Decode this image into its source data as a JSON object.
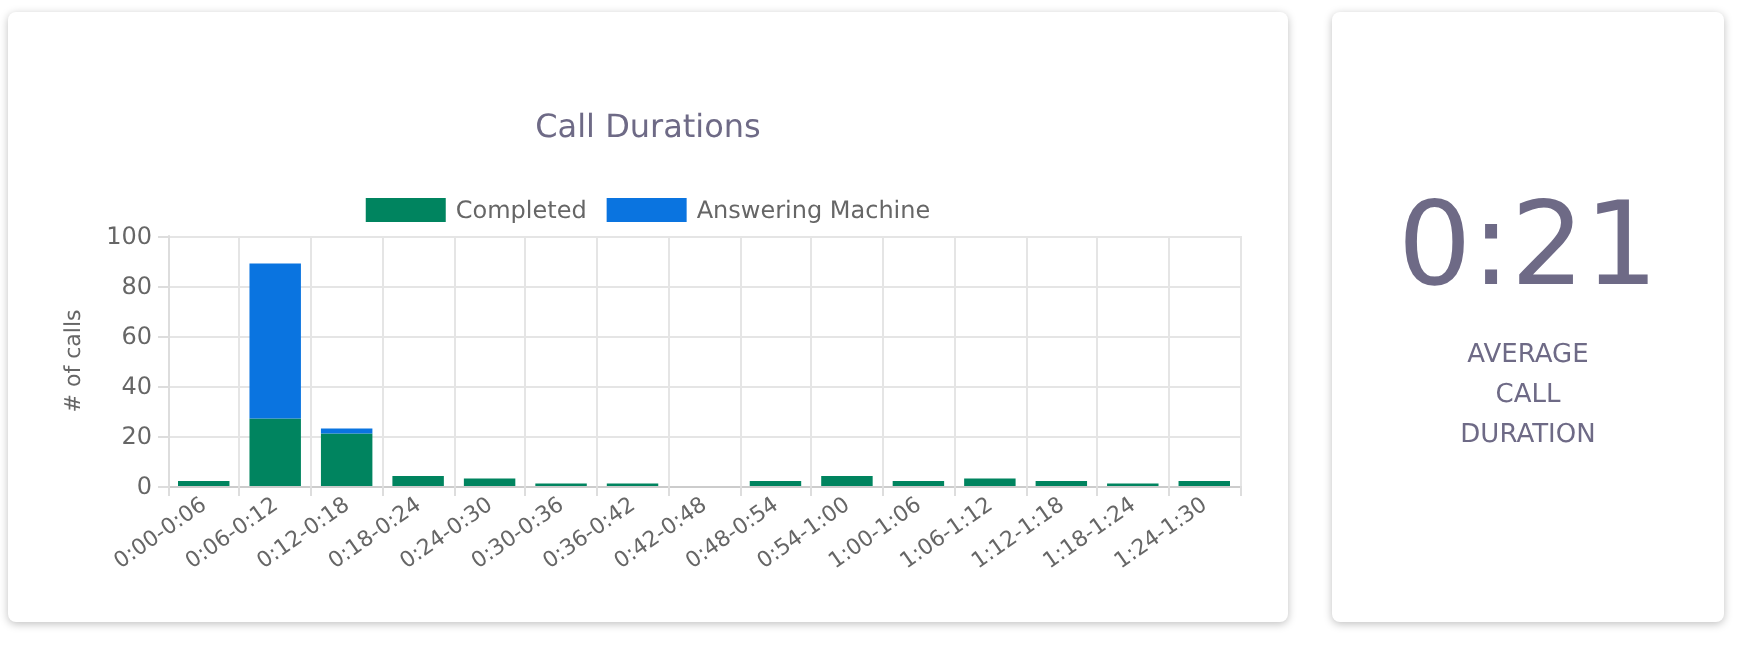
{
  "chart_data": [
    {
      "type": "bar",
      "title": "Call Durations",
      "ylabel": "# of calls",
      "categories": [
        "0:00-0:06",
        "0:06-0:12",
        "0:12-0:18",
        "0:18-0:24",
        "0:24-0:30",
        "0:30-0:36",
        "0:36-0:42",
        "0:42-0:48",
        "0:48-0:54",
        "0:54-1:00",
        "1:00-1:06",
        "1:06-1:12",
        "1:12-1:18",
        "1:18-1:24",
        "1:24-1:30"
      ],
      "stacked": true,
      "series": [
        {
          "name": "Completed",
          "color": "#00845f",
          "values": [
            2,
            27,
            21,
            4,
            3,
            1,
            1,
            0,
            2,
            4,
            2,
            3,
            2,
            1,
            2
          ]
        },
        {
          "name": "Answering Machine",
          "color": "#0a74e0",
          "values": [
            0,
            62,
            2,
            0,
            0,
            0,
            0,
            0,
            0,
            0,
            0,
            0,
            0,
            0,
            0
          ]
        }
      ],
      "ylim": [
        0,
        100
      ],
      "yticks": [
        0,
        20,
        40,
        60,
        80,
        100
      ],
      "grid": true,
      "legend": "top"
    },
    {
      "type": "other",
      "title": "0:21",
      "subtitle": "AVERAGE CALL DURATION"
    }
  ]
}
